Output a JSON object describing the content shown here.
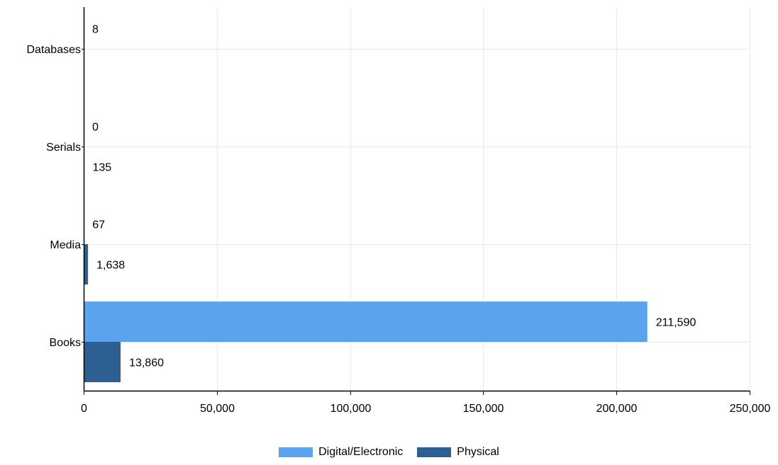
{
  "chart_data": {
    "type": "bar",
    "orientation": "horizontal",
    "categories": [
      "Databases",
      "Serials",
      "Media",
      "Books"
    ],
    "series": [
      {
        "name": "Digital/Electronic",
        "color": "#5ba3ec",
        "values": [
          8,
          0,
          67,
          211590
        ],
        "labels": [
          "8",
          "0",
          "67",
          "211,590"
        ]
      },
      {
        "name": "Physical",
        "color": "#2e5f91",
        "values": [
          null,
          135,
          1638,
          13860
        ],
        "labels": [
          "",
          "135",
          "1,638",
          "13,860"
        ]
      }
    ],
    "xlim": [
      0,
      250000
    ],
    "xticks": [
      0,
      50000,
      100000,
      150000,
      200000,
      250000
    ],
    "xtick_labels": [
      "0",
      "50,000",
      "100,000",
      "150,000",
      "200,000",
      "250,000"
    ],
    "grid": true,
    "legend_position": "bottom-center",
    "title": "",
    "xlabel": "",
    "ylabel": ""
  },
  "colors": {
    "grid": "#e8e8e8",
    "axis": "#000000"
  }
}
